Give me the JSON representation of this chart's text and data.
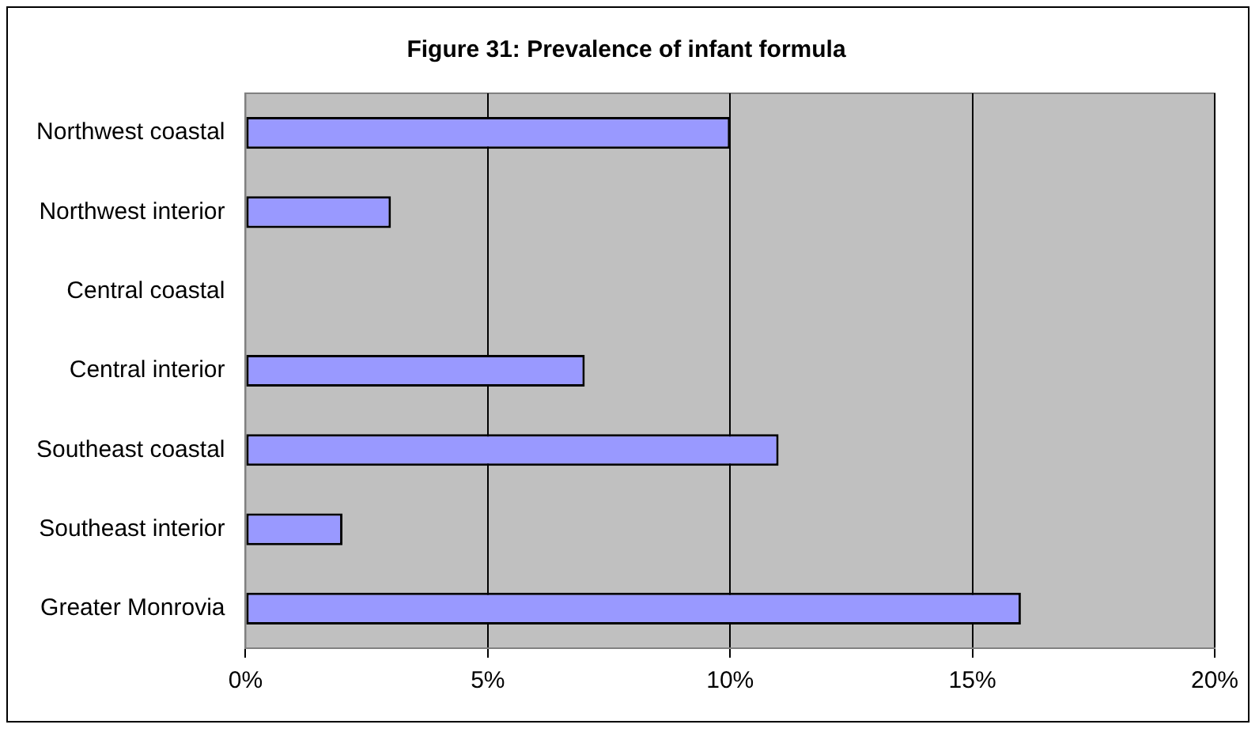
{
  "chart_data": {
    "type": "bar",
    "orientation": "horizontal",
    "title": "Figure 31: Prevalence of infant formula",
    "categories": [
      "Northwest coastal",
      "Northwest interior",
      "Central coastal",
      "Central interior",
      "Southeast coastal",
      "Southeast interior",
      "Greater Monrovia"
    ],
    "series": [
      {
        "color": "#9999ff",
        "values": [
          10,
          3,
          0,
          7,
          11,
          2,
          16
        ]
      }
    ],
    "xlim": [
      0,
      20
    ],
    "xticks": [
      {
        "value": 0,
        "label": "0%"
      },
      {
        "value": 5,
        "label": "5%"
      },
      {
        "value": 10,
        "label": "10%"
      },
      {
        "value": 15,
        "label": "15%"
      },
      {
        "value": 20,
        "label": "20%"
      }
    ],
    "grid": "x",
    "legend": false
  }
}
